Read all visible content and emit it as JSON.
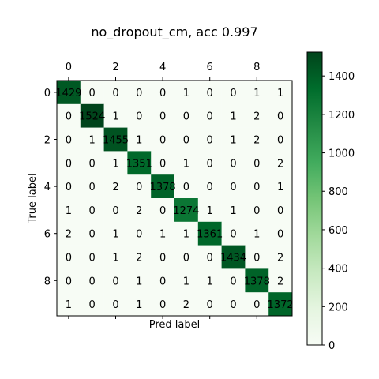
{
  "chart_data": {
    "type": "heatmap",
    "title": "no_dropout_cm, acc 0.997",
    "xlabel": "Pred label",
    "ylabel": "True label",
    "x_tick_labels": [
      "0",
      "2",
      "4",
      "6",
      "8"
    ],
    "y_tick_labels": [
      "0",
      "2",
      "4",
      "6",
      "8"
    ],
    "colorbar": {
      "ticks": [
        "0",
        "200",
        "400",
        "600",
        "800",
        "1000",
        "1200",
        "1400"
      ],
      "range": [
        0,
        1524
      ],
      "colormap": "Greens",
      "low_color": "#f7fcf5",
      "high_color": "#00441b"
    },
    "matrix": [
      [
        1429,
        0,
        0,
        0,
        0,
        1,
        0,
        0,
        1,
        1
      ],
      [
        0,
        1524,
        1,
        0,
        0,
        0,
        0,
        1,
        2,
        0
      ],
      [
        0,
        1,
        1455,
        1,
        0,
        0,
        0,
        1,
        2,
        0
      ],
      [
        0,
        0,
        1,
        1351,
        0,
        1,
        0,
        0,
        0,
        2
      ],
      [
        0,
        0,
        2,
        0,
        1378,
        0,
        0,
        0,
        0,
        1
      ],
      [
        1,
        0,
        0,
        2,
        0,
        1274,
        1,
        1,
        0,
        0
      ],
      [
        2,
        0,
        1,
        0,
        1,
        1,
        1361,
        0,
        1,
        0
      ],
      [
        0,
        0,
        1,
        2,
        0,
        0,
        0,
        1434,
        0,
        2
      ],
      [
        0,
        0,
        0,
        1,
        0,
        1,
        1,
        0,
        1378,
        2
      ],
      [
        1,
        0,
        0,
        1,
        0,
        2,
        0,
        0,
        0,
        1372
      ]
    ]
  }
}
